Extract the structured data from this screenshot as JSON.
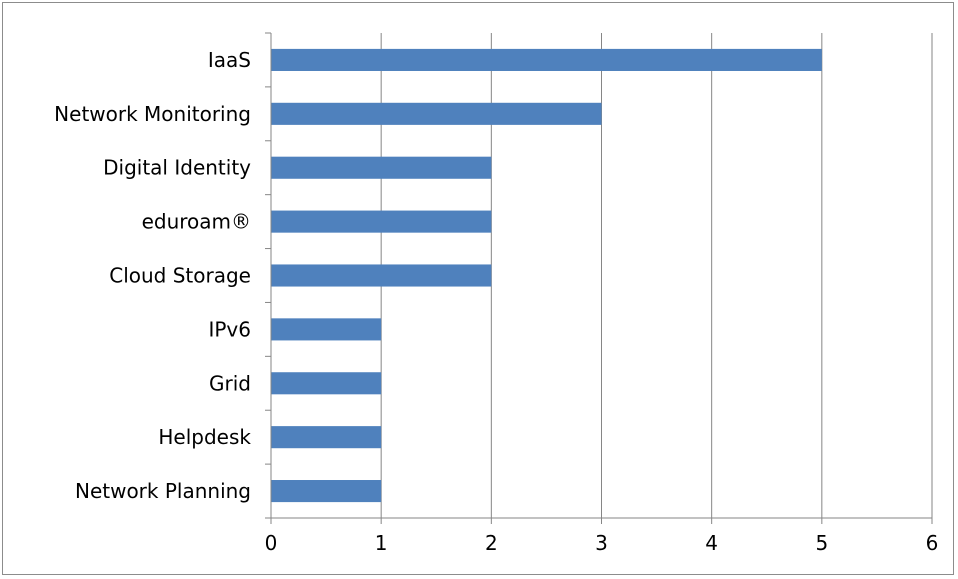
{
  "chart_data": {
    "type": "bar",
    "orientation": "horizontal",
    "categories": [
      "IaaS",
      "Network Monitoring",
      "Digital Identity",
      "eduroam®",
      "Cloud Storage",
      "IPv6",
      "Grid",
      "Helpdesk",
      "Network Planning"
    ],
    "values": [
      5,
      3,
      2,
      2,
      2,
      1,
      1,
      1,
      1
    ],
    "title": "",
    "xlabel": "",
    "ylabel": "",
    "xlim": [
      0,
      6
    ],
    "xticks": [
      "0",
      "1",
      "2",
      "3",
      "4",
      "5",
      "6"
    ],
    "grid": "vertical",
    "legend": "none",
    "bar_color": "#4f81bd",
    "grid_color": "#868686"
  }
}
